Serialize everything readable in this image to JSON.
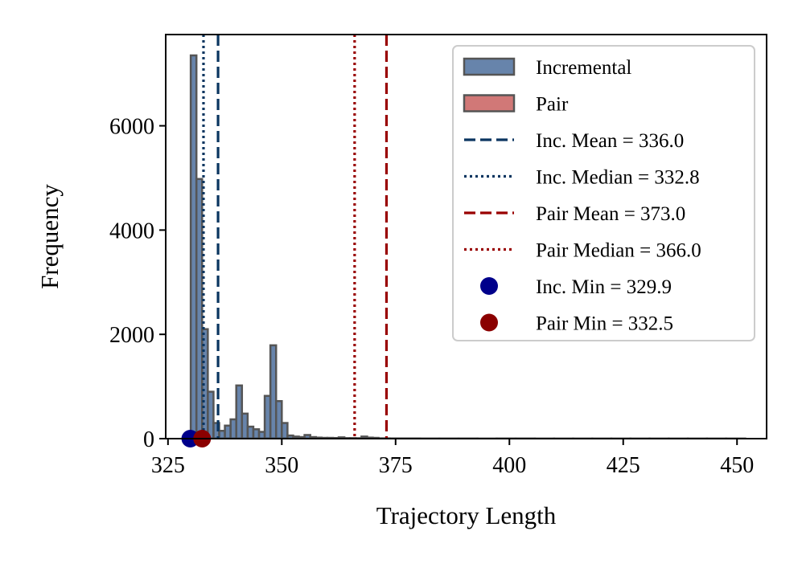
{
  "chart_data": {
    "type": "bar",
    "title": "",
    "xlabel": "Trajectory Length",
    "ylabel": "Frequency",
    "xlim": [
      324.5,
      456.5
    ],
    "ylim": [
      0,
      7750
    ],
    "xticks": [
      325,
      350,
      375,
      400,
      425,
      450
    ],
    "yticks": [
      0,
      2000,
      4000,
      6000
    ],
    "grid": false,
    "legend_position": "top-right",
    "series": [
      {
        "name": "Incremental",
        "color": "#4c6f9c",
        "bin_width": 1.25,
        "bins": [
          [
            330.0,
            7350
          ],
          [
            331.25,
            4980
          ],
          [
            332.5,
            2100
          ],
          [
            333.75,
            900
          ],
          [
            335.0,
            300
          ],
          [
            336.25,
            150
          ],
          [
            337.5,
            250
          ],
          [
            338.75,
            370
          ],
          [
            340.0,
            1020
          ],
          [
            341.25,
            480
          ],
          [
            342.5,
            230
          ],
          [
            343.75,
            180
          ],
          [
            345.0,
            130
          ],
          [
            346.25,
            820
          ],
          [
            347.5,
            1790
          ],
          [
            348.75,
            720
          ],
          [
            350.0,
            300
          ],
          [
            351.25,
            60
          ],
          [
            352.5,
            40
          ],
          [
            353.75,
            30
          ],
          [
            355.0,
            70
          ],
          [
            356.25,
            30
          ],
          [
            357.5,
            20
          ],
          [
            358.75,
            15
          ],
          [
            360.0,
            15
          ],
          [
            361.25,
            12
          ],
          [
            362.5,
            25
          ],
          [
            363.75,
            10
          ],
          [
            365.0,
            10
          ],
          [
            366.25,
            8
          ],
          [
            367.5,
            40
          ],
          [
            368.75,
            20
          ],
          [
            370.0,
            15
          ],
          [
            371.25,
            5
          ],
          [
            372.5,
            5
          ],
          [
            373.75,
            3
          ],
          [
            375.0,
            3
          ],
          [
            376.25,
            2
          ]
        ]
      },
      {
        "name": "Pair",
        "color": "#c9605f",
        "bin_width": 4.2,
        "bins": [
          [
            330.0,
            10
          ],
          [
            334.2,
            8
          ],
          [
            338.4,
            6
          ],
          [
            342.6,
            6
          ],
          [
            346.8,
            8
          ],
          [
            351.0,
            6
          ],
          [
            355.2,
            6
          ],
          [
            359.4,
            5
          ],
          [
            363.6,
            5
          ],
          [
            367.8,
            5
          ],
          [
            372.0,
            4
          ],
          [
            376.2,
            4
          ],
          [
            380.4,
            3
          ],
          [
            384.6,
            3
          ],
          [
            388.8,
            3
          ],
          [
            393.0,
            2
          ],
          [
            397.2,
            3
          ],
          [
            401.4,
            3
          ],
          [
            405.6,
            2
          ],
          [
            409.8,
            2
          ],
          [
            414.0,
            2
          ],
          [
            418.2,
            2
          ],
          [
            422.4,
            2
          ],
          [
            426.6,
            2
          ],
          [
            430.8,
            2
          ],
          [
            435.0,
            2
          ],
          [
            439.2,
            2
          ],
          [
            443.4,
            2
          ],
          [
            447.6,
            2
          ]
        ]
      }
    ],
    "lines": [
      {
        "name": "Inc. Mean = 336.0",
        "x": 336.0,
        "style": "dashed",
        "color": "#0a3560"
      },
      {
        "name": "Inc. Median = 332.8",
        "x": 332.8,
        "style": "dotted",
        "color": "#0a3560"
      },
      {
        "name": "Pair Mean = 373.0",
        "x": 373.0,
        "style": "dashed",
        "color": "#990000"
      },
      {
        "name": "Pair Median = 366.0",
        "x": 366.0,
        "style": "dotted",
        "color": "#990000"
      }
    ],
    "points": [
      {
        "name": "Inc. Min = 329.9",
        "x": 329.9,
        "y": 0,
        "color": "#00008b"
      },
      {
        "name": "Pair Min = 332.5",
        "x": 332.5,
        "y": 0,
        "color": "#8b0000"
      }
    ]
  }
}
